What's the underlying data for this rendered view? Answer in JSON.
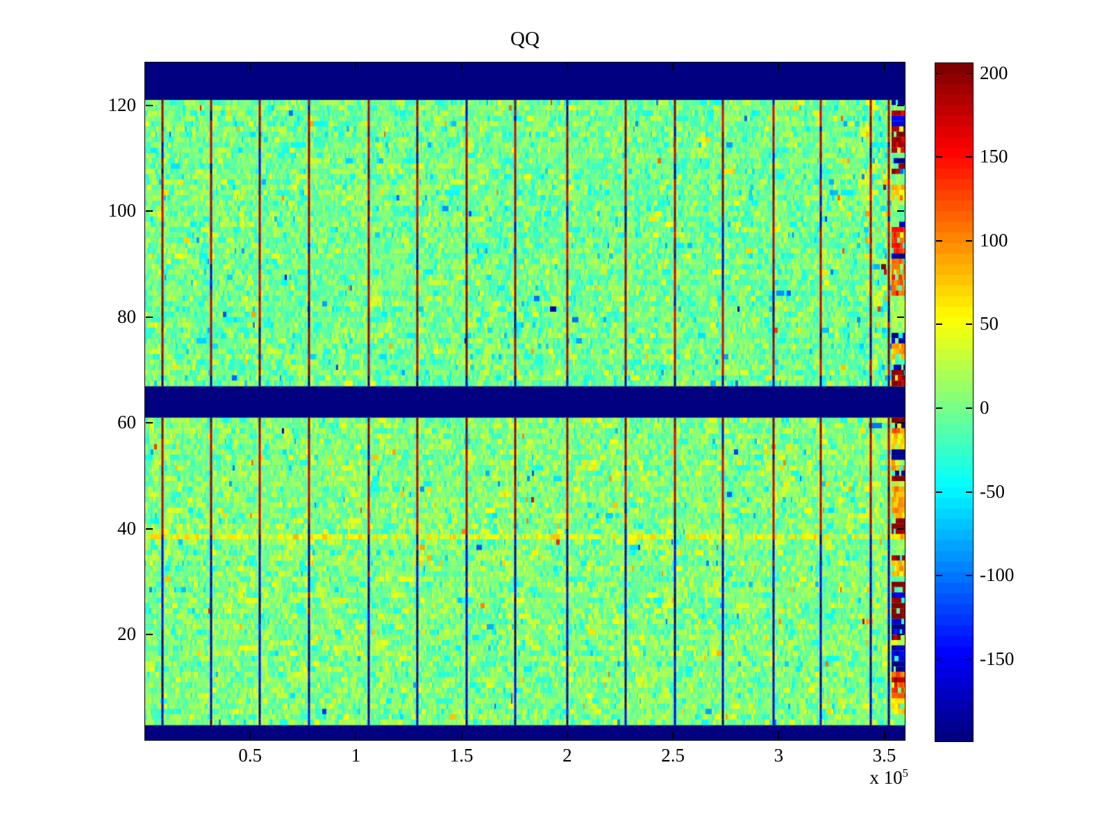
{
  "title": "QQ",
  "chart_data": {
    "type": "heatmap",
    "title": "QQ",
    "x_range": [
      0,
      360000
    ],
    "y_range": [
      0,
      128.2
    ],
    "x_tick_values": [
      50000,
      100000,
      150000,
      200000,
      250000,
      300000,
      350000
    ],
    "x_tick_labels": [
      "0.5",
      "1",
      "1.5",
      "2",
      "2.5",
      "3",
      "3.5"
    ],
    "x_exponent_prefix": "x 10",
    "x_exponent_sup": "5",
    "y_tick_values": [
      20,
      40,
      60,
      80,
      100,
      120
    ],
    "y_tick_labels": [
      "20",
      "40",
      "60",
      "80",
      "100",
      "120"
    ],
    "colormap": "jet-64",
    "color_range": [
      -199.5,
      206.5
    ],
    "colorbar_tick_values": [
      200,
      150,
      100,
      50,
      0,
      -50,
      -100,
      -150
    ],
    "colorbar_tick_labels": [
      "200",
      "150",
      "100",
      "50",
      "0",
      "-50",
      "-100",
      "-150"
    ],
    "blank_band_color": "#000080",
    "blank_bands_rows": [
      [
        121,
        129
      ],
      [
        61,
        67
      ],
      [
        0,
        3
      ]
    ],
    "vertical_stripe_x": [
      8500,
      31500,
      54500,
      78000,
      106000,
      129000,
      152500,
      175500,
      200000,
      227500,
      251000,
      273500,
      297500,
      320000,
      343500,
      352000
    ],
    "stripe_red_above_y": 38.6,
    "warm_row_y": 38.5,
    "hot_column_x": [
      353500,
      360000
    ],
    "noise": {
      "mean": 0,
      "std": 22
    },
    "seed": 1337
  }
}
